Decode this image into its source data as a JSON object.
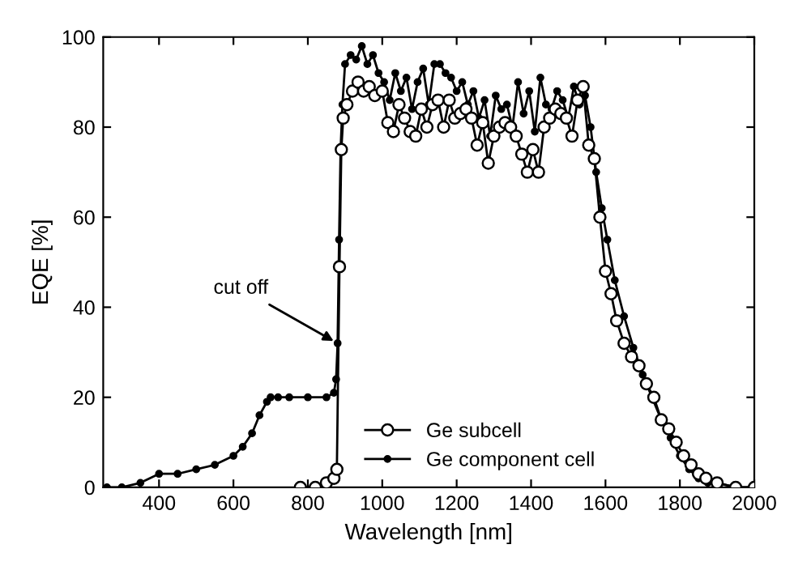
{
  "chart_data": {
    "type": "line",
    "xlabel": "Wavelength [nm]",
    "ylabel": "EQE [%]",
    "xlim": [
      250,
      2000
    ],
    "xticks": [
      400,
      600,
      800,
      1000,
      1200,
      1400,
      1600,
      1800,
      2000
    ],
    "ylim": [
      0,
      100
    ],
    "yticks": [
      0,
      20,
      40,
      60,
      80,
      100
    ],
    "grid": false,
    "legend": "bottom right",
    "marker": "circle",
    "annotations": [
      {
        "text": "cut off",
        "x": 880,
        "y": 32
      }
    ],
    "series": [
      {
        "name": "Ge subcell",
        "color": "#000000",
        "x": [
          780,
          820,
          850,
          870,
          878,
          885,
          890,
          895,
          905,
          920,
          935,
          950,
          965,
          980,
          1000,
          1015,
          1030,
          1045,
          1060,
          1075,
          1090,
          1105,
          1120,
          1135,
          1150,
          1165,
          1180,
          1195,
          1210,
          1225,
          1240,
          1255,
          1270,
          1285,
          1300,
          1315,
          1330,
          1345,
          1360,
          1375,
          1390,
          1405,
          1420,
          1435,
          1450,
          1465,
          1480,
          1495,
          1510,
          1525,
          1540,
          1555,
          1570,
          1585,
          1600,
          1615,
          1630,
          1650,
          1670,
          1690,
          1710,
          1730,
          1750,
          1770,
          1790,
          1810,
          1830,
          1850,
          1870,
          1900,
          1950,
          2000
        ],
        "values": [
          0,
          0,
          1,
          2,
          4,
          49,
          75,
          82,
          85,
          88,
          90,
          88,
          89,
          87,
          88,
          81,
          79,
          85,
          82,
          79,
          78,
          84,
          80,
          85,
          86,
          80,
          86,
          82,
          83,
          84,
          82,
          76,
          81,
          72,
          78,
          80,
          81,
          80,
          78,
          74,
          70,
          75,
          70,
          80,
          82,
          84,
          83,
          82,
          78,
          86,
          89,
          76,
          73,
          60,
          48,
          43,
          37,
          32,
          29,
          27,
          23,
          20,
          15,
          13,
          10,
          7,
          5,
          3,
          2,
          1,
          0,
          0
        ]
      },
      {
        "name": "Ge component cell",
        "color": "#000000",
        "x": [
          260,
          300,
          350,
          400,
          450,
          500,
          550,
          600,
          625,
          650,
          670,
          690,
          700,
          720,
          750,
          800,
          850,
          870,
          876,
          880,
          884,
          888,
          893,
          900,
          915,
          930,
          945,
          960,
          975,
          990,
          1005,
          1020,
          1035,
          1050,
          1065,
          1080,
          1095,
          1110,
          1125,
          1140,
          1155,
          1170,
          1185,
          1200,
          1215,
          1230,
          1245,
          1260,
          1275,
          1290,
          1305,
          1320,
          1335,
          1350,
          1365,
          1380,
          1395,
          1410,
          1425,
          1440,
          1455,
          1470,
          1485,
          1500,
          1515,
          1530,
          1545,
          1560,
          1575,
          1590,
          1605,
          1625,
          1650,
          1675,
          1700,
          1725,
          1750,
          1775,
          1800,
          1825,
          1850,
          1875,
          1900,
          1950,
          2000
        ],
        "values": [
          0,
          0,
          1,
          3,
          3,
          4,
          5,
          7,
          9,
          12,
          16,
          19,
          20,
          20,
          20,
          20,
          20,
          21,
          24,
          32,
          55,
          75,
          85,
          94,
          96,
          95,
          98,
          94,
          96,
          92,
          90,
          86,
          92,
          88,
          91,
          84,
          90,
          93,
          85,
          94,
          94,
          92,
          91,
          88,
          90,
          85,
          88,
          82,
          86,
          78,
          87,
          84,
          85,
          80,
          90,
          83,
          88,
          79,
          91,
          85,
          84,
          88,
          86,
          82,
          89,
          85,
          87,
          80,
          70,
          62,
          55,
          46,
          38,
          31,
          25,
          20,
          15,
          11,
          7,
          4,
          2,
          1,
          1,
          0,
          0
        ]
      }
    ]
  }
}
